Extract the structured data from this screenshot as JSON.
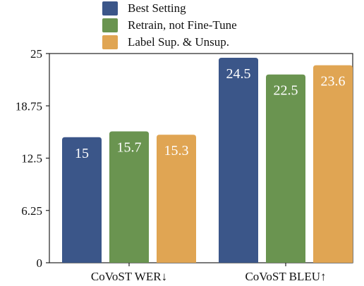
{
  "chart_data": {
    "type": "bar",
    "categories": [
      "CoVoST WER",
      "CoVoST BLEU"
    ],
    "category_arrows": [
      "↓",
      "↑"
    ],
    "series": [
      {
        "name": "Best Setting",
        "color": "#3b5689",
        "values": [
          15,
          24.5
        ],
        "labels": [
          "15",
          "24.5"
        ]
      },
      {
        "name": "Retrain, not Fine-Tune",
        "color": "#6a9450",
        "values": [
          15.7,
          22.5
        ],
        "labels": [
          "15.7",
          "22.5"
        ]
      },
      {
        "name": "Label Sup. & Unsup.",
        "color": "#e0a553",
        "values": [
          15.3,
          23.6
        ],
        "labels": [
          "15.3",
          "23.6"
        ]
      }
    ],
    "ylim": [
      0,
      25
    ],
    "yticks": [
      "0",
      "6.25",
      "12.5",
      "18.75",
      "25"
    ],
    "ytick_values": [
      0,
      6.25,
      12.5,
      18.75,
      25
    ],
    "legend_position": "top",
    "grid": false
  }
}
